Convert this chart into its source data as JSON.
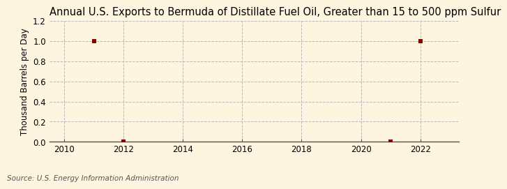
{
  "title": "Annual U.S. Exports to Bermuda of Distillate Fuel Oil, Greater than 15 to 500 ppm Sulfur",
  "ylabel": "Thousand Barrels per Day",
  "source": "Source: U.S. Energy Information Administration",
  "xlim": [
    2009.5,
    2023.3
  ],
  "ylim": [
    0.0,
    1.2
  ],
  "yticks": [
    0.0,
    0.2,
    0.4,
    0.6,
    0.8,
    1.0,
    1.2
  ],
  "xticks": [
    2010,
    2012,
    2014,
    2016,
    2018,
    2020,
    2022
  ],
  "data_x": [
    2011,
    2012,
    2021,
    2022
  ],
  "data_y": [
    1.0,
    0.0,
    0.0,
    1.0
  ],
  "marker_color": "#8B0000",
  "marker": "s",
  "marker_size": 4,
  "bg_color": "#FDF5E0",
  "plot_bg_color": "#FDF5E0",
  "grid_color": "#AAAAAA",
  "grid_style": "--",
  "grid_alpha": 0.8,
  "title_fontsize": 10.5,
  "label_fontsize": 8.5,
  "tick_fontsize": 8.5,
  "source_fontsize": 7.5
}
